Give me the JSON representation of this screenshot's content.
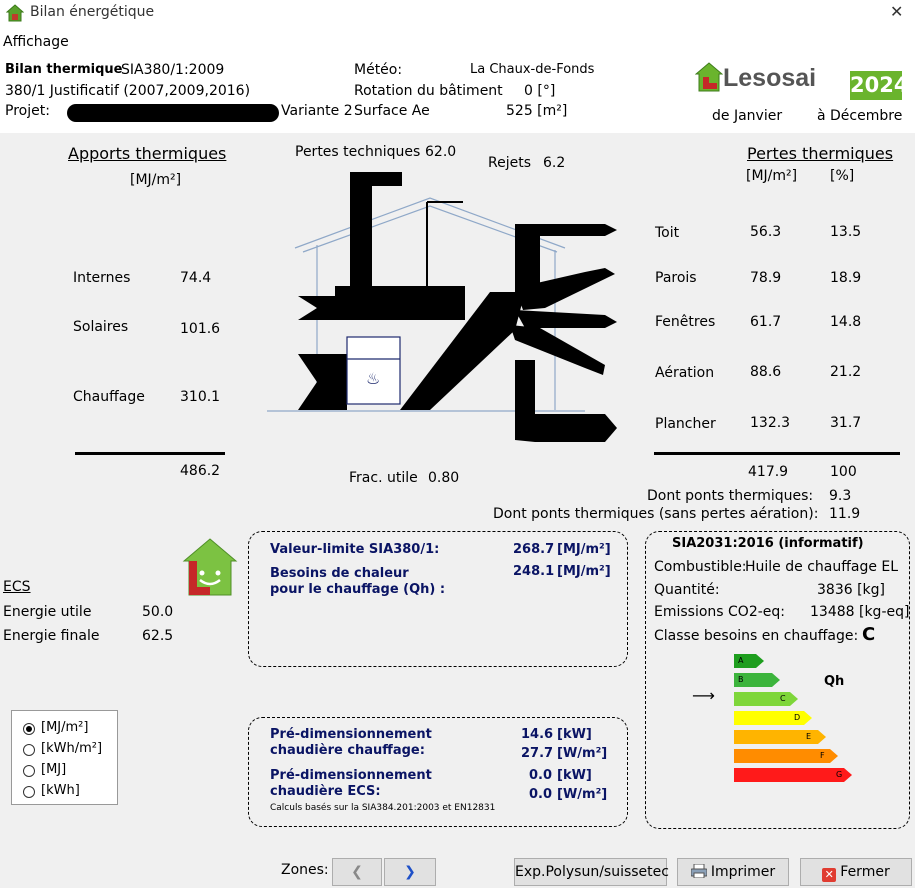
{
  "window": {
    "title": "Bilan énergétique",
    "close": "✕"
  },
  "menu": {
    "affichage": "Affichage"
  },
  "header": {
    "bilan_label": "Bilan thermique",
    "norm": "SIA380/1:2009",
    "justif": "380/1 Justificatif (2007,2009,2016)",
    "projet_label": "Projet:",
    "variante": "Variante 2",
    "surface_label": "Surface Ae",
    "surface_value": "525 [m²]",
    "meteo_label": "Météo:",
    "meteo_value": "La Chaux-de-Fonds",
    "rotation_label": "Rotation du bâtiment",
    "rotation_value": "0 [°]",
    "logo": "Lesosai",
    "year": "2024",
    "from": "de Janvier",
    "to": "à Décembre"
  },
  "apports": {
    "title": "Apports thermiques",
    "unit": "[MJ/m²]",
    "items": [
      {
        "label": "Internes",
        "value": "74.4"
      },
      {
        "label": "Solaires",
        "value": "101.6"
      },
      {
        "label": "Chauffage",
        "value": "310.1"
      }
    ],
    "total": "486.2"
  },
  "diagram": {
    "pertes_tech_label": "Pertes techniques",
    "pertes_tech_value": "62.0",
    "rejets_label": "Rejets",
    "rejets_value": "6.2",
    "frac_label": "Frac. utile",
    "frac_value": "0.80"
  },
  "pertes": {
    "title": "Pertes thermiques",
    "unit1": "[MJ/m²]",
    "unit2": "[%]",
    "items": [
      {
        "label": "Toit",
        "value": "56.3",
        "pct": "13.5"
      },
      {
        "label": "Parois",
        "value": "78.9",
        "pct": "18.9"
      },
      {
        "label": "Fenêtres",
        "value": "61.7",
        "pct": "14.8"
      },
      {
        "label": "Aération",
        "value": "88.6",
        "pct": "21.2"
      },
      {
        "label": "Plancher",
        "value": "132.3",
        "pct": "31.7"
      }
    ],
    "total": "417.9",
    "total_pct": "100",
    "ponts_label": "Dont ponts thermiques:",
    "ponts_value": "9.3",
    "ponts2_label": "Dont ponts thermiques (sans pertes aération):",
    "ponts2_value": "11.9"
  },
  "ecs": {
    "title": "ECS",
    "utile_label": "Energie utile",
    "utile_value": "50.0",
    "finale_label": "Energie finale",
    "finale_value": "62.5"
  },
  "units": {
    "options": [
      "[MJ/m²]",
      "[kWh/m²]",
      "[MJ]",
      "[kWh]"
    ],
    "selected": "[MJ/m²]"
  },
  "limite": {
    "label": "Valeur-limite SIA380/1:",
    "value": "268.7",
    "unit": "[MJ/m²]",
    "besoins1": "Besoins de chaleur",
    "besoins2": "pour le chauffage (Qh) :",
    "besoins_value": "248.1",
    "besoins_unit": "[MJ/m²]"
  },
  "predim": {
    "l1": "Pré-dimensionnement",
    "l2": "chaudière chauffage:",
    "v1": "14.6",
    "u1": "[kW]",
    "v2": "27.7",
    "u2": "[W/m²]",
    "l3": "Pré-dimensionnement",
    "l4": "chaudière ECS:",
    "v3": "0.0",
    "u3": "[kW]",
    "v4": "0.0",
    "u4": "[W/m²]",
    "note": "Calculs basés sur la SIA384.201:2003 et EN12831"
  },
  "sia2031": {
    "title": "SIA2031:2016 (informatif)",
    "comb_label": "Combustible:",
    "comb_value": "Huile de chauffage EL",
    "qty_label": "Quantité:",
    "qty_value": "3836 [kg]",
    "co2_label": "Emissions CO2-eq:",
    "co2_value": "13488 [kg-eq]",
    "classe_label": "Classe besoins en chauffage:",
    "classe_value": "C",
    "qh": "Qh",
    "classes": [
      {
        "letter": "A",
        "color": "#1e9e1e"
      },
      {
        "letter": "B",
        "color": "#3cb43c"
      },
      {
        "letter": "C",
        "color": "#7ed63a"
      },
      {
        "letter": "D",
        "color": "#ffff00"
      },
      {
        "letter": "E",
        "color": "#ffb400"
      },
      {
        "letter": "F",
        "color": "#ff8c00"
      },
      {
        "letter": "G",
        "color": "#ff1a1a"
      }
    ]
  },
  "footer": {
    "zones": "Zones:",
    "exp": "Exp.Polysun/suissetec",
    "print": "Imprimer",
    "close": "Fermer"
  }
}
